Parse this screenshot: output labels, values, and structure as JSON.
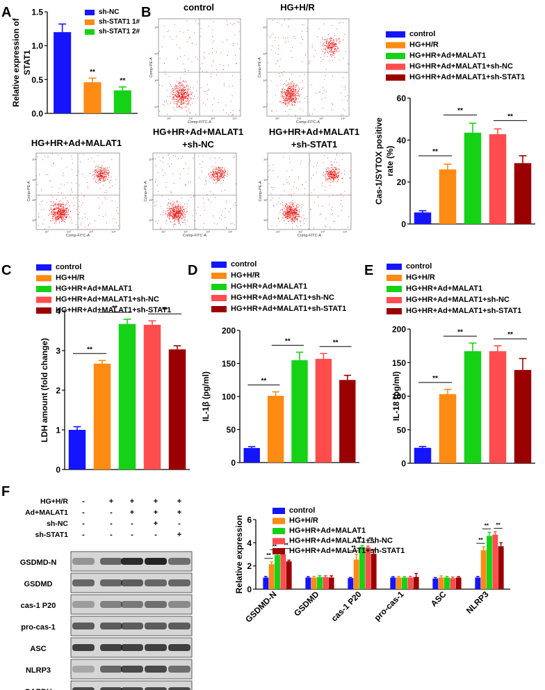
{
  "colors": {
    "blue": "#1414ff",
    "orange": "#ff8a14",
    "green": "#16d216",
    "salmon": "#ff4d4d",
    "darkred": "#9b0000",
    "dot": "#e8201c"
  },
  "panel_labels": {
    "a": "A",
    "b": "B",
    "c": "C",
    "d": "D",
    "e": "E",
    "f": "F"
  },
  "flow": {
    "xlabel": "Comp-FITC-A",
    "ylabel": "Comp-PE-A",
    "panels": [
      {
        "title": "control"
      },
      {
        "title": "HG+H/R"
      },
      {
        "title": "HG+HR+Ad+MALAT1"
      },
      {
        "title_line1": "HG+HR+Ad+MALAT1",
        "title_line2": "+sh-NC"
      },
      {
        "title_line1": "HG+HR+Ad+MALAT1",
        "title_line2": "+sh-STAT1"
      }
    ]
  },
  "blot": {
    "row_labels": [
      "HG+H/R",
      "Ad+MALAT1",
      "sh-NC",
      "sh-STAT1"
    ],
    "signs": [
      [
        "-",
        "+",
        "+",
        "+",
        "+"
      ],
      [
        "-",
        "-",
        "+",
        "+",
        "+"
      ],
      [
        "-",
        "-",
        "-",
        "+",
        "-"
      ],
      [
        "-",
        "-",
        "-",
        "-",
        "+"
      ]
    ],
    "bands": [
      "GSDMD-N",
      "GSDMD",
      "cas-1 P20",
      "pro-cas-1",
      "ASC",
      "NLRP3",
      "GAPDH"
    ]
  },
  "chart_data": [
    {
      "id": "A",
      "type": "bar",
      "title": "",
      "xlabel": "",
      "ylabel": "Relative expression of STAT1",
      "categories": [
        "sh-NC",
        "sh-STAT1 1#",
        "sh-STAT1 2#"
      ],
      "values": [
        1.2,
        0.46,
        0.34
      ],
      "errors": [
        0.12,
        0.06,
        0.05
      ],
      "legend": [
        "sh-NC",
        "sh-STAT1 1#",
        "sh-STAT1 2#"
      ],
      "ylim": [
        0,
        1.5
      ],
      "yticks": [
        "0.0",
        "0.5",
        "1.0",
        "1.5"
      ],
      "annotations": [
        "**",
        "**"
      ]
    },
    {
      "id": "B",
      "type": "bar",
      "ylabel_line1": "Cas-1/SYTOX positive",
      "ylabel_line2": "rate (%)",
      "categories": [
        "control",
        "HG+H/R",
        "HG+HR+Ad+MALAT1",
        "HG+HR+Ad+MALAT1+sh-NC",
        "HG+HR+Ad+MALAT1+sh-STAT1"
      ],
      "values": [
        5.5,
        26,
        43.5,
        42.8,
        29
      ],
      "errors": [
        0.8,
        2.5,
        4.5,
        2.5,
        3.5
      ],
      "ylim": [
        0,
        60
      ],
      "yticks": [
        "0",
        "20",
        "40",
        "60"
      ],
      "annotations": [
        "**",
        "**",
        "**"
      ]
    },
    {
      "id": "C",
      "type": "bar",
      "ylabel": "LDH amount (fold change)",
      "categories": [
        "control",
        "HG+H/R",
        "HG+HR+Ad+MALAT1",
        "HG+HR+Ad+MALAT1+sh-NC",
        "HG+HR+Ad+MALAT1+sh-STAT1"
      ],
      "values": [
        1.0,
        2.67,
        3.67,
        3.65,
        3.03
      ],
      "errors": [
        0.08,
        0.08,
        0.12,
        0.1,
        0.09
      ],
      "ylim": [
        0,
        4
      ],
      "yticks": [
        "0",
        "1",
        "2",
        "3",
        "4"
      ],
      "annotations": [
        "**",
        "**",
        "**"
      ]
    },
    {
      "id": "D",
      "type": "bar",
      "ylabel": "IL-1β (pg/ml)",
      "categories": [
        "control",
        "HG+H/R",
        "HG+HR+Ad+MALAT1",
        "HG+HR+Ad+MALAT1+sh-NC",
        "HG+HR+Ad+MALAT1+sh-STAT1"
      ],
      "values": [
        22,
        101,
        155,
        157,
        125
      ],
      "errors": [
        2,
        6,
        12,
        8,
        7
      ],
      "ylim": [
        0,
        200
      ],
      "yticks": [
        "0",
        "50",
        "100",
        "150",
        "200"
      ],
      "annotations": [
        "**",
        "**",
        "**"
      ]
    },
    {
      "id": "E",
      "type": "bar",
      "ylabel": "IL-18 (pg/ml)",
      "categories": [
        "control",
        "HG+H/R",
        "HG+HR+Ad+MALAT1",
        "HG+HR+Ad+MALAT1+sh-NC",
        "HG+HR+Ad+MALAT1+sh-STAT1"
      ],
      "values": [
        23,
        103,
        167,
        167,
        139
      ],
      "errors": [
        2,
        7,
        12,
        8,
        17
      ],
      "ylim": [
        0,
        200
      ],
      "yticks": [
        "0",
        "50",
        "100",
        "150",
        "200"
      ],
      "annotations": [
        "**",
        "**",
        "**"
      ]
    },
    {
      "id": "F",
      "type": "bar",
      "ylabel": "Relative expression",
      "categories": [
        "GSDMD-N",
        "GSDMD",
        "cas-1 P20",
        "pro-cas-1",
        "ASC",
        "NLRP3"
      ],
      "legend": [
        "control",
        "HG+H/R",
        "HG+HR+Ad+MALAT1",
        "HG+HR+Ad+MALAT1+sh-NC",
        "HG+HR+Ad+MALAT1+sh-STAT1"
      ],
      "series": [
        {
          "name": "control",
          "values": [
            1.0,
            1.0,
            0.95,
            1.0,
            0.92,
            1.0
          ],
          "errors": [
            0.1,
            0.08,
            0.06,
            0.08,
            0.08,
            0.1
          ]
        },
        {
          "name": "HG+H/R",
          "values": [
            2.15,
            1.0,
            2.55,
            1.0,
            1.0,
            3.35
          ],
          "errors": [
            0.2,
            0.1,
            0.45,
            0.1,
            0.15,
            0.3
          ]
        },
        {
          "name": "HG+HR+Ad+MALAT1",
          "values": [
            2.95,
            1.05,
            3.65,
            1.0,
            1.0,
            4.6
          ],
          "errors": [
            0.15,
            0.12,
            0.12,
            0.08,
            0.1,
            0.3
          ]
        },
        {
          "name": "HG+HR+Ad+MALAT1+sh-NC",
          "values": [
            3.0,
            1.05,
            3.6,
            1.0,
            0.95,
            4.7
          ],
          "errors": [
            0.2,
            0.12,
            0.12,
            0.1,
            0.1,
            0.25
          ]
        },
        {
          "name": "HG+HR+Ad+MALAT1+sh-STAT1",
          "values": [
            2.4,
            1.0,
            3.05,
            1.05,
            1.0,
            3.7
          ],
          "errors": [
            0.1,
            0.15,
            0.35,
            0.3,
            0.08,
            0.3
          ]
        }
      ],
      "ylim": [
        0,
        6
      ],
      "yticks": [
        "0",
        "2",
        "4",
        "6"
      ],
      "annotations": [
        "**",
        "**",
        "**",
        "**",
        "**",
        "**",
        "**",
        "**",
        "**"
      ]
    }
  ]
}
